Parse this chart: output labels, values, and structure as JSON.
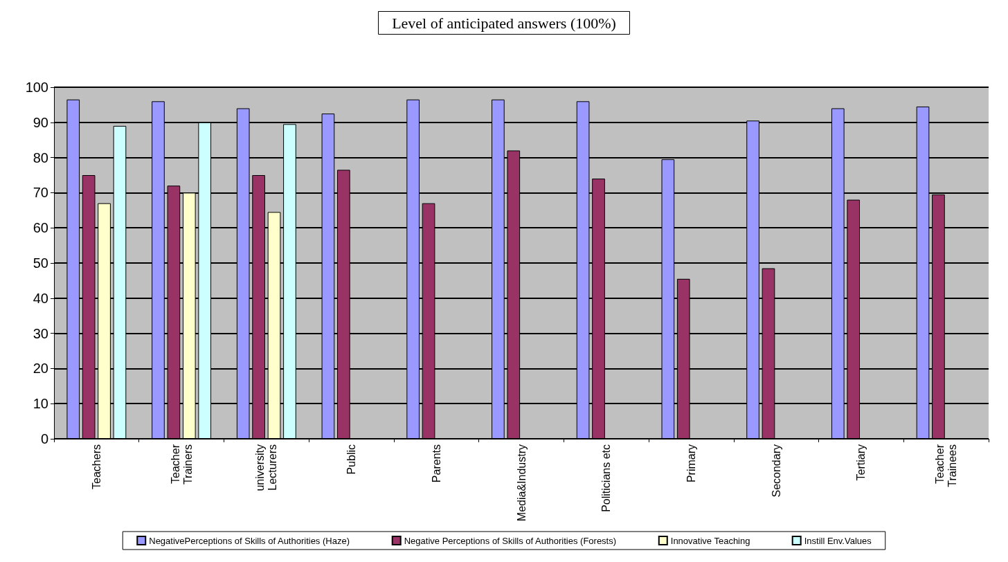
{
  "chart_data": {
    "type": "bar",
    "title": "Level of anticipated answers (100%)",
    "categories": [
      "Teachers",
      "Teacher\nTrainers",
      "university\nLecturers",
      "Public",
      "Parents",
      "Media&Industry",
      "Politicians etc",
      "Primary",
      "Secondary",
      "Tertiary",
      "Teacher\nTrainees"
    ],
    "series": [
      {
        "name": "NegativePerceptions of Skills of Authorities (Haze)",
        "color": "#9999ff",
        "values": [
          96.5,
          96,
          94,
          92.5,
          96.5,
          96.5,
          96,
          79.5,
          90.5,
          94,
          94.5
        ]
      },
      {
        "name": "Negative Perceptions of Skills of Authorities (Forests)",
        "color": "#993366",
        "values": [
          75,
          72,
          75,
          76.5,
          67,
          82,
          74,
          45.5,
          48.5,
          68,
          69.5
        ]
      },
      {
        "name": "Innovative Teaching",
        "color": "#ffffcc",
        "values": [
          67,
          70,
          64.5,
          null,
          null,
          null,
          null,
          null,
          null,
          null,
          null
        ]
      },
      {
        "name": "Instill Env.Values",
        "color": "#ccffff",
        "values": [
          89,
          90,
          89.5,
          null,
          null,
          null,
          null,
          null,
          null,
          null,
          null
        ]
      }
    ],
    "ylim": [
      0,
      100
    ],
    "yticks": [
      0,
      10,
      20,
      30,
      40,
      50,
      60,
      70,
      80,
      90,
      100
    ],
    "grid": "y",
    "legend": "bottom"
  }
}
